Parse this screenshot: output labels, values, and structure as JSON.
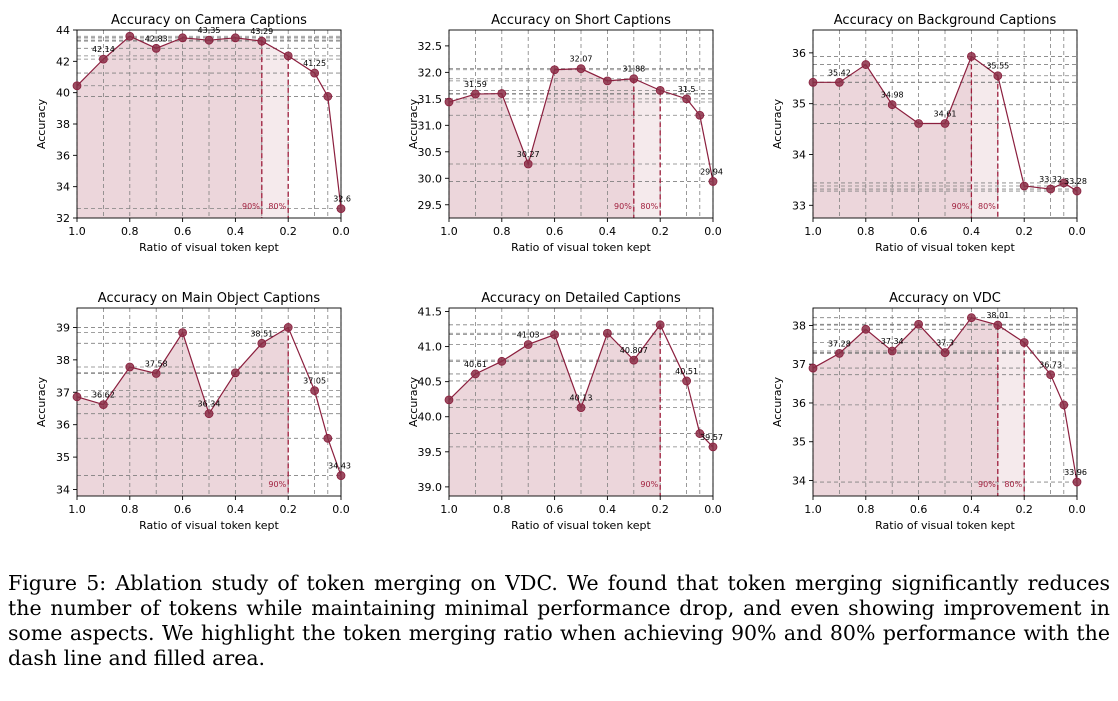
{
  "figure": {
    "caption": "Figure 5: Ablation study of token merging on VDC. We found that token merging significantly reduces the number of tokens while maintaining minimal performance drop, and even showing improvement in some aspects. We highlight the token merging ratio when achieving 90% and 80% performance with the dash line and filled area."
  },
  "colors": {
    "line": "#8b1f3e",
    "marker": "#8b2e46",
    "fill": "#c98a98",
    "threshold": "#a01f3d",
    "grid": "#808080"
  },
  "chart_data": [
    {
      "type": "line",
      "title": "Accuracy on Camera Captions",
      "xlabel": "Ratio of visual token kept",
      "ylabel": "Accuracy",
      "x": [
        1.0,
        0.9,
        0.8,
        0.7,
        0.6,
        0.5,
        0.4,
        0.3,
        0.2,
        0.1,
        0.05,
        0.0
      ],
      "y": [
        40.44,
        42.14,
        43.6,
        42.83,
        43.5,
        43.35,
        43.5,
        43.29,
        42.35,
        41.25,
        39.76,
        32.6
      ],
      "xlim": [
        1.0,
        0.0
      ],
      "ylim": [
        32,
        44
      ],
      "xticks": [
        1.0,
        0.8,
        0.6,
        0.4,
        0.2,
        0.0
      ],
      "yticks": [
        32,
        34,
        36,
        38,
        40,
        42,
        44
      ],
      "data_labels": [
        {
          "i": 1,
          "text": "42.14"
        },
        {
          "i": 3,
          "text": "42.83"
        },
        {
          "i": 5,
          "text": "43.35"
        },
        {
          "i": 7,
          "text": "43.29"
        },
        {
          "i": 9,
          "text": "41.25"
        },
        {
          "i": 11,
          "text": "32.6"
        }
      ],
      "thresholds": [
        {
          "x": 0.3,
          "label": "90%"
        },
        {
          "x": 0.2,
          "label": "80%"
        }
      ],
      "grid": true
    },
    {
      "type": "line",
      "title": "Accuracy on Short Captions",
      "xlabel": "Ratio of visual token kept",
      "ylabel": "Accuracy",
      "x": [
        1.0,
        0.9,
        0.8,
        0.7,
        0.6,
        0.5,
        0.4,
        0.3,
        0.2,
        0.1,
        0.05,
        0.0
      ],
      "y": [
        31.44,
        31.59,
        31.6,
        30.27,
        32.05,
        32.07,
        31.84,
        31.88,
        31.66,
        31.5,
        31.19,
        29.94
      ],
      "xlim": [
        1.0,
        0.0
      ],
      "ylim": [
        29.25,
        32.8
      ],
      "xticks": [
        1.0,
        0.8,
        0.6,
        0.4,
        0.2,
        0.0
      ],
      "yticks": [
        29.5,
        30.0,
        30.5,
        31.0,
        31.5,
        32.0,
        32.5
      ],
      "data_labels": [
        {
          "i": 1,
          "text": "31.59"
        },
        {
          "i": 3,
          "text": "30.27"
        },
        {
          "i": 5,
          "text": "32.07"
        },
        {
          "i": 7,
          "text": "31.88"
        },
        {
          "i": 9,
          "text": "31.5"
        },
        {
          "i": 11,
          "text": "29.94"
        }
      ],
      "thresholds": [
        {
          "x": 0.3,
          "label": "90%"
        },
        {
          "x": 0.2,
          "label": "80%"
        }
      ],
      "grid": true
    },
    {
      "type": "line",
      "title": "Accuracy on Background Captions",
      "xlabel": "Ratio of visual token kept",
      "ylabel": "Accuracy",
      "x": [
        1.0,
        0.9,
        0.8,
        0.7,
        0.6,
        0.5,
        0.4,
        0.3,
        0.2,
        0.1,
        0.05,
        0.0
      ],
      "y": [
        35.42,
        35.42,
        35.77,
        34.98,
        34.61,
        34.61,
        35.93,
        35.55,
        33.38,
        33.32,
        33.44,
        33.28
      ],
      "xlim": [
        1.0,
        0.0
      ],
      "ylim": [
        32.75,
        36.45
      ],
      "xticks": [
        1.0,
        0.8,
        0.6,
        0.4,
        0.2,
        0.0
      ],
      "yticks": [
        33,
        34,
        35,
        36
      ],
      "data_labels": [
        {
          "i": 1,
          "text": "35.42"
        },
        {
          "i": 3,
          "text": "34.98"
        },
        {
          "i": 5,
          "text": "34.61"
        },
        {
          "i": 7,
          "text": "35.55"
        },
        {
          "i": 9,
          "text": "33.32"
        },
        {
          "i": 11,
          "text": "33.28"
        }
      ],
      "thresholds": [
        {
          "x": 0.4,
          "label": "90%"
        },
        {
          "x": 0.3,
          "label": "80%"
        }
      ],
      "grid": true
    },
    {
      "type": "line",
      "title": "Accuracy on Main Object Captions",
      "xlabel": "Ratio of visual token kept",
      "ylabel": "Accuracy",
      "x": [
        1.0,
        0.9,
        0.8,
        0.7,
        0.6,
        0.5,
        0.4,
        0.3,
        0.2,
        0.1,
        0.05,
        0.0
      ],
      "y": [
        36.86,
        36.62,
        37.78,
        37.58,
        38.84,
        36.34,
        37.6,
        38.51,
        39.0,
        37.05,
        35.58,
        34.43
      ],
      "xlim": [
        1.0,
        0.0
      ],
      "ylim": [
        33.8,
        39.6
      ],
      "xticks": [
        1.0,
        0.8,
        0.6,
        0.4,
        0.2,
        0.0
      ],
      "yticks": [
        34,
        35,
        36,
        37,
        38,
        39
      ],
      "data_labels": [
        {
          "i": 1,
          "text": "36.62"
        },
        {
          "i": 3,
          "text": "37.58"
        },
        {
          "i": 5,
          "text": "36.34"
        },
        {
          "i": 7,
          "text": "38.51"
        },
        {
          "i": 9,
          "text": "37.05"
        },
        {
          "i": 11,
          "text": "34.43"
        }
      ],
      "thresholds": [
        {
          "x": 0.2,
          "label": "90%"
        }
      ],
      "grid": true
    },
    {
      "type": "line",
      "title": "Accuracy on Detailed Captions",
      "xlabel": "Ratio of visual token kept",
      "ylabel": "Accuracy",
      "x": [
        1.0,
        0.9,
        0.8,
        0.7,
        0.6,
        0.5,
        0.4,
        0.3,
        0.2,
        0.1,
        0.05,
        0.0
      ],
      "y": [
        40.24,
        40.61,
        40.79,
        41.03,
        41.17,
        40.13,
        41.19,
        40.807,
        41.31,
        40.51,
        39.76,
        39.57
      ],
      "xlim": [
        1.0,
        0.0
      ],
      "ylim": [
        38.87,
        41.55
      ],
      "xticks": [
        1.0,
        0.8,
        0.6,
        0.4,
        0.2,
        0.0
      ],
      "yticks": [
        39.0,
        39.5,
        40.0,
        40.5,
        41.0,
        41.5
      ],
      "data_labels": [
        {
          "i": 1,
          "text": "40.61"
        },
        {
          "i": 3,
          "text": "41.03"
        },
        {
          "i": 5,
          "text": "40.13"
        },
        {
          "i": 7,
          "text": "40.807"
        },
        {
          "i": 9,
          "text": "40.51"
        },
        {
          "i": 11,
          "text": "39.57"
        }
      ],
      "thresholds": [
        {
          "x": 0.2,
          "label": "90%"
        }
      ],
      "grid": true
    },
    {
      "type": "line",
      "title": "Accuracy on VDC",
      "xlabel": "Ratio of visual token kept",
      "ylabel": "Accuracy",
      "x": [
        1.0,
        0.9,
        0.8,
        0.7,
        0.6,
        0.5,
        0.4,
        0.3,
        0.2,
        0.1,
        0.05,
        0.0
      ],
      "y": [
        36.9,
        37.28,
        37.9,
        37.34,
        38.03,
        37.3,
        38.2,
        38.01,
        37.56,
        36.73,
        35.95,
        33.96
      ],
      "xlim": [
        1.0,
        0.0
      ],
      "ylim": [
        33.6,
        38.45
      ],
      "xticks": [
        1.0,
        0.8,
        0.6,
        0.4,
        0.2,
        0.0
      ],
      "yticks": [
        34,
        35,
        36,
        37,
        38
      ],
      "data_labels": [
        {
          "i": 1,
          "text": "37.28"
        },
        {
          "i": 3,
          "text": "37.34"
        },
        {
          "i": 5,
          "text": "37.3"
        },
        {
          "i": 7,
          "text": "38.01"
        },
        {
          "i": 9,
          "text": "36.73"
        },
        {
          "i": 11,
          "text": "33.96"
        }
      ],
      "thresholds": [
        {
          "x": 0.3,
          "label": "90%"
        },
        {
          "x": 0.2,
          "label": "80%"
        }
      ],
      "grid": true
    }
  ]
}
